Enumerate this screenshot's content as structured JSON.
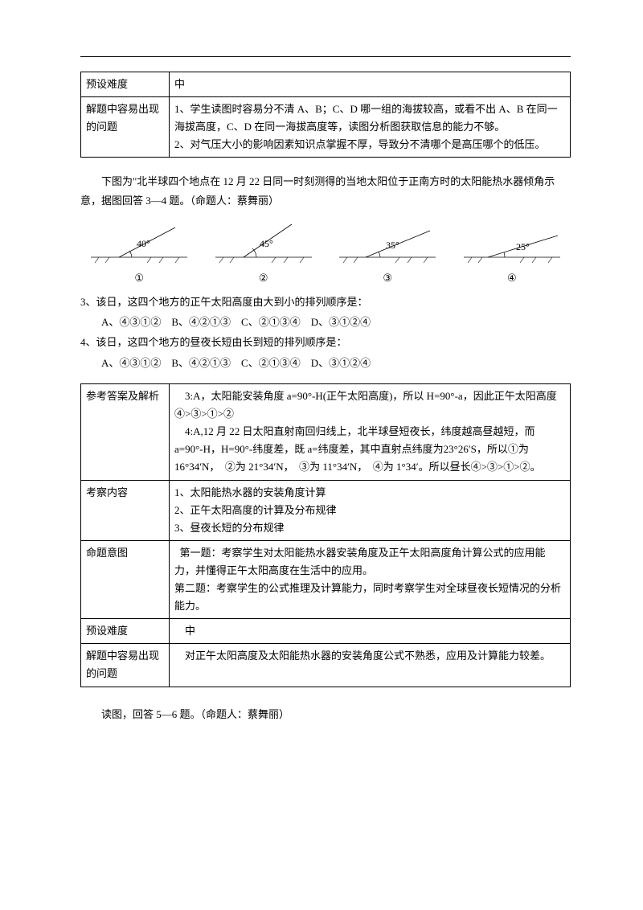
{
  "table1": {
    "rows": [
      {
        "label": "预设难度",
        "content": "中"
      },
      {
        "label": "解题中容易出现的问题",
        "content": "1、学生读图时容易分不清 A、B；C、D 哪一组的海拔较高，或看不出 A、B 在同一海拔高度，C、D 在同一海拔高度等，读图分析图获取信息的能力不够。\n2、对气压大小的影响因素知识点掌握不厚，导致分不清哪个是高压哪个的低压。"
      }
    ]
  },
  "intro34": "下图为\"北半球四个地点在 12 月 22 日同一时刻测得的当地太阳位于正南方时的太阳能热水器倾角示意，据图回答 3—4 题。（命题人：蔡舞丽）",
  "diagrams": [
    {
      "angle": "40°",
      "label": "①"
    },
    {
      "angle": "45°",
      "label": "②"
    },
    {
      "angle": "35°",
      "label": "③"
    },
    {
      "angle": "25°",
      "label": "④"
    }
  ],
  "q3": {
    "stem": "3、该日，这四个地方的正午太阳高度由大到小的排列顺序是：",
    "opts": "A、④③①②    B、④②①③    C、②①③④    D、③①②④"
  },
  "q4": {
    "stem": "4、该日，这四个地方的昼夜长短由长到短的排列顺序是：",
    "opts": "A、④③①②    B、④②①③    C、②①③④    D、③①②④"
  },
  "table2": {
    "rows": [
      {
        "label": "参考答案及解析",
        "content": "    3:A，太阳能安装角度 a=90°-H(正午太阳高度)，所以 H=90°-a，因此正午太阳高度④>③>①>②\n    4:A,12 月 22 日太阳直射南回归线上，北半球昼短夜长，纬度越高昼越短，而 a=90°-H，H=90°-纬度差，既 a=纬度差，其中直射点纬度为23°26′S，所以①为 16°34′N，  ②为 21°34′N，  ③为 11°34′N，  ④为 1°34′。所以昼长④>③>①>②。"
      },
      {
        "label": "考察内容",
        "content": "1、太阳能热水器的安装角度计算\n2、正午太阳高度的计算及分布规律\n3、昼夜长短的分布规律"
      },
      {
        "label": "命题意图",
        "content": "  第一题：考察学生对太阳能热水器安装角度及正午太阳高度角计算公式的应用能力，并懂得正午太阳高度在生活中的应用。\n第二题：考察学生的公式推理及计算能力，同时考察学生对全球昼夜长短情况的分析能力。"
      },
      {
        "label": "预设难度",
        "content": "    中"
      },
      {
        "label": "解题中容易出现的问题",
        "content": "    对正午太阳高度及太阳能热水器的安装角度公式不熟悉，应用及计算能力较差。"
      }
    ]
  },
  "intro56": "读图，回答 5—6 题。（命题人：蔡舞丽）"
}
